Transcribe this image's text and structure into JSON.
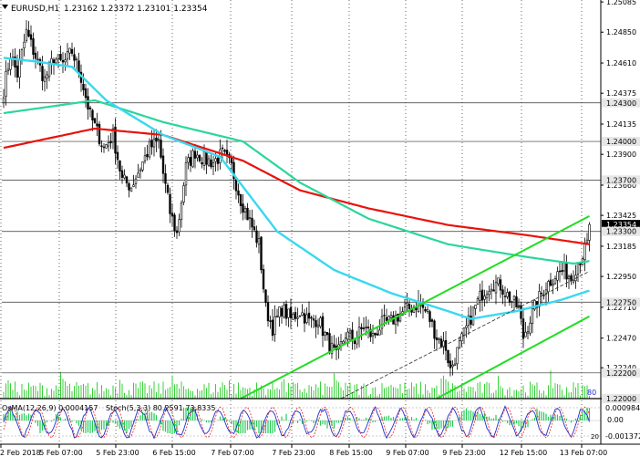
{
  "header": {
    "symbol": "EURUSD,H1",
    "ohlc": "1.23162 1.23372 1.23101 1.23354"
  },
  "subwindow": {
    "osma_label": "OsMA(12,26,9) 0.0004157",
    "stoch_label": "Stoch(5,3,3) 80.2591 73.8335",
    "level_top": "0.000984",
    "level_mid": "0.00",
    "level_bottom": "-0.001372",
    "stoch_level_80": "80",
    "stoch_level_20": "20"
  },
  "colors": {
    "background": "#ffffff",
    "candle": "#000000",
    "ema_red": "#e8120c",
    "ema_green": "#2bd69a",
    "ema_cyan": "#39d8f0",
    "channel": "#22dd22",
    "volume": "#22cc22",
    "grid": "#000000",
    "osma": "#22cc55",
    "stoch_main": "#1c2fcc",
    "stoch_signal": "#f02020"
  },
  "chart_data": {
    "type": "candlestick",
    "symbol": "EURUSD",
    "timeframe": "H1",
    "ylim": [
      1.22,
      1.251
    ],
    "y_ticks": [
      "1.25085",
      "1.24850",
      "1.24610",
      "1.24375",
      "1.24135",
      "1.23900",
      "1.23660",
      "1.23425",
      "1.23185",
      "1.22950",
      "1.22710",
      "1.22470",
      "1.22240"
    ],
    "x_labels": [
      "2 Feb 2018",
      "5 Feb 07:00",
      "5 Feb 23:00",
      "6 Feb 15:00",
      "7 Feb 07:00",
      "7 Feb 23:00",
      "8 Feb 15:00",
      "9 Feb 07:00",
      "9 Feb 23:00",
      "12 Feb 15:00",
      "13 Feb 07:00"
    ],
    "level_labels": [
      {
        "text": "1.24300",
        "value": 1.243
      },
      {
        "text": "1.24000",
        "value": 1.24
      },
      {
        "text": "1.23700",
        "value": 1.237
      },
      {
        "text": "1.23354",
        "value": 1.23354,
        "current": true
      },
      {
        "text": "1.23300",
        "value": 1.233
      },
      {
        "text": "1.22750",
        "value": 1.2275
      },
      {
        "text": "1.22200",
        "value": 1.222
      },
      {
        "text": "1.22000",
        "value": 1.22
      }
    ],
    "horizontal_levels": [
      1.243,
      1.24,
      1.237,
      1.233,
      1.2275,
      1.222,
      1.22
    ],
    "close_anchors": [
      [
        0,
        1.244
      ],
      [
        3,
        1.2468
      ],
      [
        6,
        1.2452
      ],
      [
        10,
        1.2485
      ],
      [
        14,
        1.2466
      ],
      [
        18,
        1.2448
      ],
      [
        22,
        1.2465
      ],
      [
        26,
        1.246
      ],
      [
        30,
        1.247
      ],
      [
        34,
        1.245
      ],
      [
        38,
        1.242
      ],
      [
        44,
        1.2395
      ],
      [
        48,
        1.2405
      ],
      [
        52,
        1.237
      ],
      [
        56,
        1.2365
      ],
      [
        60,
        1.238
      ],
      [
        64,
        1.2395
      ],
      [
        68,
        1.24
      ],
      [
        70,
        1.2375
      ],
      [
        73,
        1.2345
      ],
      [
        76,
        1.2328
      ],
      [
        80,
        1.238
      ],
      [
        84,
        1.2392
      ],
      [
        88,
        1.2386
      ],
      [
        92,
        1.2384
      ],
      [
        96,
        1.239
      ],
      [
        100,
        1.238
      ],
      [
        104,
        1.2355
      ],
      [
        108,
        1.2338
      ],
      [
        112,
        1.232
      ],
      [
        115,
        1.227
      ],
      [
        118,
        1.2255
      ],
      [
        122,
        1.227
      ],
      [
        126,
        1.2262
      ],
      [
        130,
        1.2268
      ],
      [
        134,
        1.226
      ],
      [
        138,
        1.2262
      ],
      [
        142,
        1.2245
      ],
      [
        146,
        1.2232
      ],
      [
        150,
        1.225
      ],
      [
        154,
        1.2246
      ],
      [
        158,
        1.2256
      ],
      [
        162,
        1.2248
      ],
      [
        166,
        1.2258
      ],
      [
        170,
        1.226
      ],
      [
        174,
        1.2266
      ],
      [
        178,
        1.227
      ],
      [
        182,
        1.2274
      ],
      [
        186,
        1.2266
      ],
      [
        190,
        1.2248
      ],
      [
        194,
        1.224
      ],
      [
        196,
        1.2222
      ],
      [
        198,
        1.2232
      ],
      [
        202,
        1.225
      ],
      [
        206,
        1.2268
      ],
      [
        210,
        1.2282
      ],
      [
        214,
        1.229
      ],
      [
        218,
        1.2288
      ],
      [
        222,
        1.2278
      ],
      [
        226,
        1.227
      ],
      [
        228,
        1.2248
      ],
      [
        231,
        1.2262
      ],
      [
        234,
        1.2275
      ],
      [
        238,
        1.2288
      ],
      [
        242,
        1.2296
      ],
      [
        246,
        1.23
      ],
      [
        249,
        1.2294
      ],
      [
        252,
        1.2306
      ],
      [
        254,
        1.2312
      ],
      [
        256,
        1.232
      ],
      [
        257,
        1.23354
      ]
    ],
    "ema_red": [
      [
        0,
        1.2395
      ],
      [
        40,
        1.241
      ],
      [
        70,
        1.2405
      ],
      [
        105,
        1.2385
      ],
      [
        130,
        1.2362
      ],
      [
        160,
        1.2348
      ],
      [
        195,
        1.2335
      ],
      [
        230,
        1.2327
      ],
      [
        257,
        1.232
      ]
    ],
    "ema_green": [
      [
        0,
        1.2422
      ],
      [
        40,
        1.2432
      ],
      [
        70,
        1.2415
      ],
      [
        105,
        1.24
      ],
      [
        130,
        1.2368
      ],
      [
        160,
        1.234
      ],
      [
        195,
        1.232
      ],
      [
        230,
        1.231
      ],
      [
        250,
        1.2305
      ],
      [
        257,
        1.2307
      ]
    ],
    "ema_cyan": [
      [
        0,
        1.2465
      ],
      [
        15,
        1.2462
      ],
      [
        30,
        1.2458
      ],
      [
        45,
        1.2432
      ],
      [
        70,
        1.2405
      ],
      [
        95,
        1.2388
      ],
      [
        120,
        1.233
      ],
      [
        145,
        1.23
      ],
      [
        170,
        1.2282
      ],
      [
        195,
        1.2268
      ],
      [
        205,
        1.2262
      ],
      [
        225,
        1.2268
      ],
      [
        245,
        1.2277
      ],
      [
        257,
        1.2284
      ]
    ],
    "channel_upper": [
      [
        104,
        1.22
      ],
      [
        257,
        1.2342
      ]
    ],
    "channel_lower": [
      [
        190,
        1.22
      ],
      [
        257,
        1.2264
      ]
    ],
    "channel_mid": [
      [
        148,
        1.22
      ],
      [
        257,
        1.2299
      ]
    ]
  }
}
